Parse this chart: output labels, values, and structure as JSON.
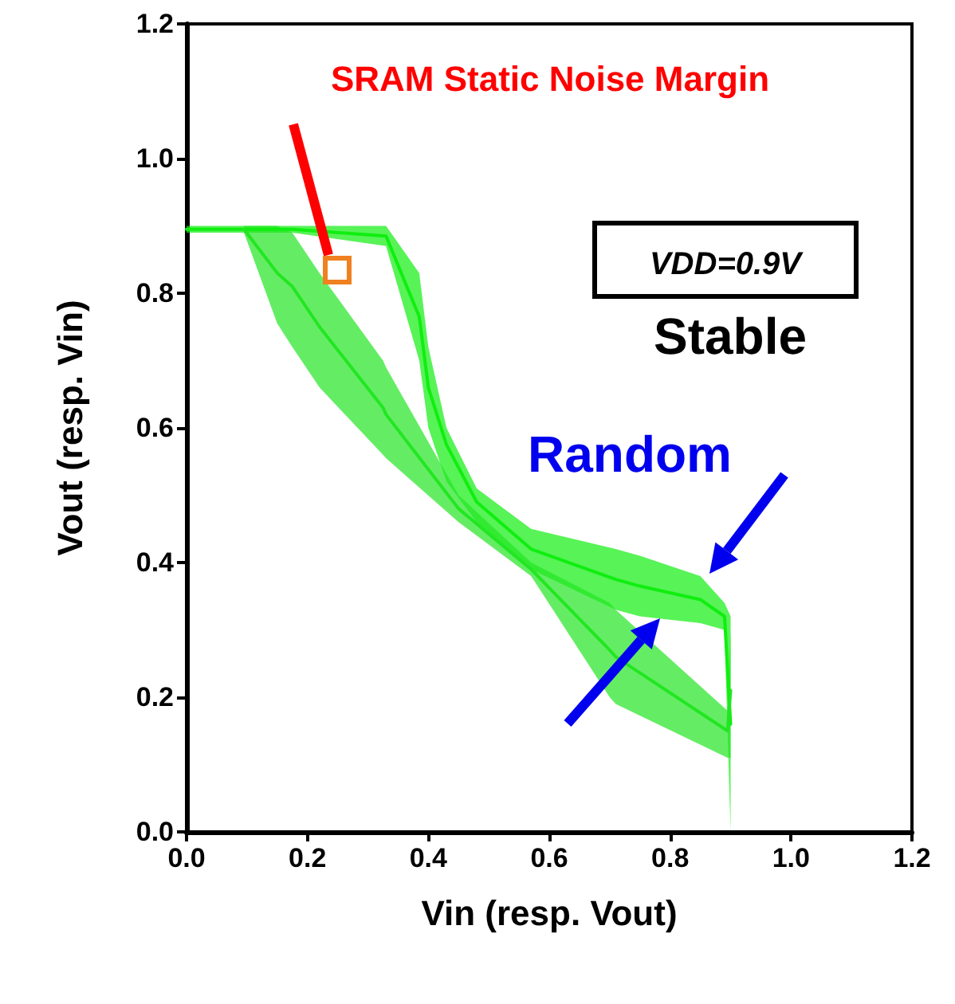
{
  "chart_data": {
    "type": "line",
    "xlabel": "Vin (resp. Vout)",
    "ylabel": "Vout (resp. Vin)",
    "xlim": [
      0,
      1.2
    ],
    "ylim": [
      0,
      1.2
    ],
    "xticks": [
      {
        "value": 0,
        "label": "0.0"
      },
      {
        "value": 0.2,
        "label": "0.2"
      },
      {
        "value": 0.4,
        "label": "0.4"
      },
      {
        "value": 0.6,
        "label": "0.6"
      },
      {
        "value": 0.8,
        "label": "0.8"
      },
      {
        "value": 1.0,
        "label": "1.0"
      },
      {
        "value": 1.2,
        "label": "1.2"
      }
    ],
    "yticks": [
      {
        "value": 0,
        "label": "0.0"
      },
      {
        "value": 0.2,
        "label": "0.2"
      },
      {
        "value": 0.4,
        "label": "0.4"
      },
      {
        "value": 0.6,
        "label": "0.6"
      },
      {
        "value": 0.8,
        "label": "0.8"
      },
      {
        "value": 1.0,
        "label": "1.0"
      },
      {
        "value": 1.2,
        "label": "1.2"
      }
    ],
    "grid": false,
    "marker": "none",
    "series": [
      {
        "color": "#10ee10",
        "x": [
          0,
          0.175,
          0.33,
          0.385,
          0.4,
          0.43,
          0.48,
          0.57,
          0.71,
          0.75,
          0.85,
          0.89,
          0.9
        ],
        "values": [
          0.895,
          0.895,
          0.885,
          0.765,
          0.66,
          0.575,
          0.49,
          0.42,
          0.375,
          0.365,
          0.345,
          0.32,
          0.16
        ],
        "upper": [
          0.9,
          0.9,
          0.9,
          0.83,
          0.72,
          0.6,
          0.51,
          0.45,
          0.42,
          0.41,
          0.38,
          0.34,
          0.32
        ],
        "lower": [
          0.89,
          0.89,
          0.87,
          0.7,
          0.6,
          0.52,
          0.46,
          0.39,
          0.33,
          0.32,
          0.31,
          0.3,
          0
        ]
      },
      {
        "color": "#22e622",
        "x": [
          0.095,
          0.15,
          0.175,
          0.22,
          0.325,
          0.33,
          0.45,
          0.57,
          0.7,
          0.71,
          0.895,
          0.9
        ],
        "values": [
          0.895,
          0.83,
          0.81,
          0.75,
          0.63,
          0.62,
          0.48,
          0.39,
          0.27,
          0.26,
          0.15,
          0.21
        ],
        "upper": [
          0.9,
          0.9,
          0.89,
          0.83,
          0.7,
          0.69,
          0.5,
          0.4,
          0.34,
          0.33,
          0.18,
          0.3
        ],
        "lower": [
          0.89,
          0.755,
          0.72,
          0.66,
          0.56,
          0.555,
          0.46,
          0.38,
          0.2,
          0.19,
          0.11,
          0.11
        ]
      }
    ],
    "annotations": [
      "SRAM Static Noise Margin",
      "VDD=0.9V",
      "Stable",
      "Random"
    ]
  }
}
